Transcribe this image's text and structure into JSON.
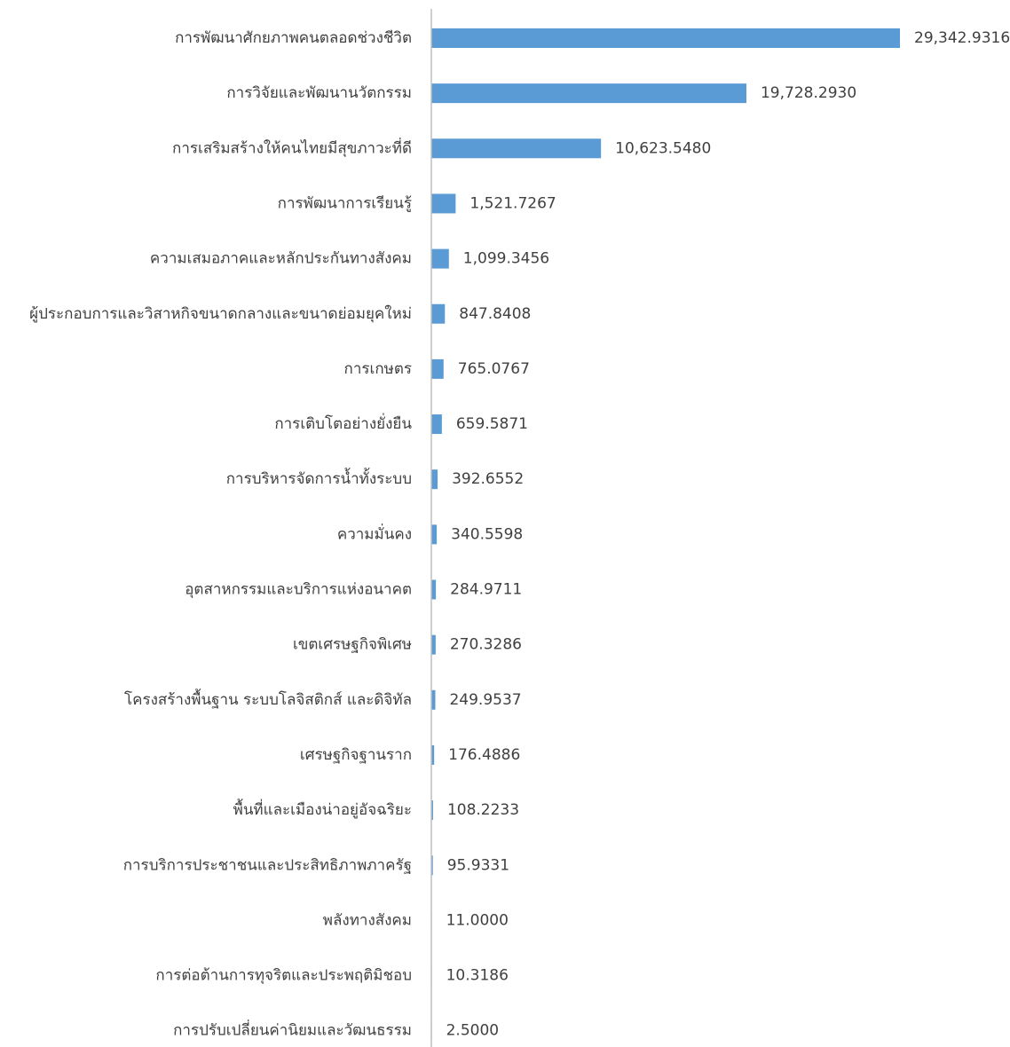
{
  "chart_data": {
    "type": "bar",
    "orientation": "horizontal",
    "title": "",
    "xlabel": "",
    "ylabel": "",
    "grid": false,
    "legend": "none",
    "bar_color": "#5B9BD5",
    "axis_color": "#BFBFBF",
    "text_color": "#404040",
    "xlim": [
      0,
      29342.9316
    ],
    "categories": [
      "การพัฒนาศักยภาพคนตลอดช่วงชีวิต",
      "การวิจัยและพัฒนานวัตกรรม",
      "การเสริมสร้างให้คนไทยมีสุขภาวะที่ดี",
      "การพัฒนาการเรียนรู้",
      "ความเสมอภาคและหลักประกันทางสังคม",
      "ผู้ประกอบการและวิสาหกิจขนาดกลางและขนาดย่อมยุคใหม่",
      "การเกษตร",
      "การเติบโตอย่างยั่งยืน",
      "การบริหารจัดการน้ำทั้งระบบ",
      "ความมั่นคง",
      "อุตสาหกรรมและบริการแห่งอนาคต",
      "เขตเศรษฐกิจพิเศษ",
      "โครงสร้างพื้นฐาน ระบบโลจิสติกส์ และดิจิทัล",
      "เศรษฐกิจฐานราก",
      "พื้นที่และเมืองน่าอยู่อัจฉริยะ",
      "การบริการประชาชนและประสิทธิภาพภาครัฐ",
      "พลังทางสังคม",
      "การต่อต้านการทุจริตและประพฤติมิชอบ",
      "การปรับเปลี่ยนค่านิยมและวัฒนธรรม"
    ],
    "values": [
      29342.9316,
      19728.293,
      10623.548,
      1521.7267,
      1099.3456,
      847.8408,
      765.0767,
      659.5871,
      392.6552,
      340.5598,
      284.9711,
      270.3286,
      249.9537,
      176.4886,
      108.2233,
      95.9331,
      11.0,
      10.3186,
      2.5
    ],
    "value_labels": [
      "29,342.9316",
      "19,728.2930",
      "10,623.5480",
      "1,521.7267",
      "1,099.3456",
      "847.8408",
      "765.0767",
      "659.5871",
      "392.6552",
      "340.5598",
      "284.9711",
      "270.3286",
      "249.9537",
      "176.4886",
      "108.2233",
      "95.9331",
      "11.0000",
      "10.3186",
      "2.5000"
    ]
  }
}
